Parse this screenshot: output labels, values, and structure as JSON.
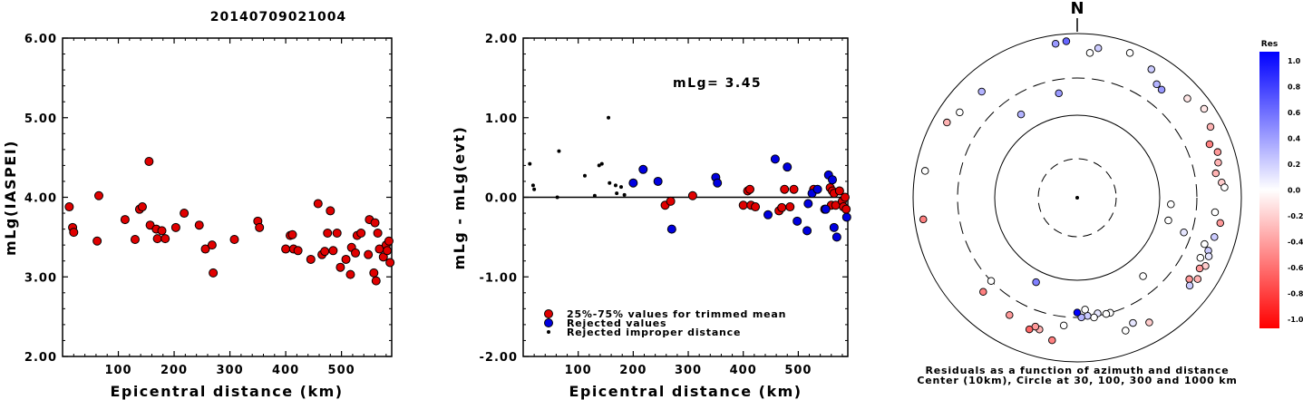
{
  "title": "20140709021004",
  "chart_data": [
    {
      "type": "scatter",
      "ylabel": "mLg(IASPEI)",
      "xlabel": "Epicentral distance (km)",
      "xlim": [
        0,
        590
      ],
      "ylim": [
        2.0,
        6.0
      ],
      "xticks": [
        "100",
        "200",
        "300",
        "400",
        "500"
      ],
      "yticks": [
        "2.00",
        "3.00",
        "4.00",
        "5.00",
        "6.00"
      ],
      "series": [
        {
          "marker": "red-circle",
          "points": [
            [
              12,
              3.88
            ],
            [
              18,
              3.62
            ],
            [
              20,
              3.56
            ],
            [
              62,
              3.45
            ],
            [
              65,
              4.02
            ],
            [
              112,
              3.72
            ],
            [
              130,
              3.47
            ],
            [
              138,
              3.85
            ],
            [
              143,
              3.88
            ],
            [
              155,
              4.45
            ],
            [
              157,
              3.65
            ],
            [
              168,
              3.6
            ],
            [
              170,
              3.48
            ],
            [
              178,
              3.58
            ],
            [
              184,
              3.48
            ],
            [
              203,
              3.62
            ],
            [
              218,
              3.8
            ],
            [
              245,
              3.65
            ],
            [
              256,
              3.35
            ],
            [
              268,
              3.4
            ],
            [
              270,
              3.05
            ],
            [
              308,
              3.47
            ],
            [
              350,
              3.7
            ],
            [
              353,
              3.62
            ],
            [
              400,
              3.35
            ],
            [
              408,
              3.52
            ],
            [
              412,
              3.53
            ],
            [
              414,
              3.35
            ],
            [
              422,
              3.33
            ],
            [
              445,
              3.22
            ],
            [
              458,
              3.92
            ],
            [
              465,
              3.28
            ],
            [
              470,
              3.32
            ],
            [
              475,
              3.55
            ],
            [
              480,
              3.83
            ],
            [
              485,
              3.33
            ],
            [
              492,
              3.55
            ],
            [
              498,
              3.12
            ],
            [
              508,
              3.22
            ],
            [
              516,
              3.03
            ],
            [
              518,
              3.37
            ],
            [
              525,
              3.3
            ],
            [
              528,
              3.52
            ],
            [
              535,
              3.55
            ],
            [
              548,
              3.28
            ],
            [
              550,
              3.72
            ],
            [
              558,
              3.05
            ],
            [
              560,
              3.68
            ],
            [
              562,
              2.95
            ],
            [
              565,
              3.55
            ],
            [
              568,
              3.35
            ],
            [
              575,
              3.25
            ],
            [
              580,
              3.4
            ],
            [
              582,
              3.33
            ],
            [
              585,
              3.45
            ],
            [
              587,
              3.18
            ]
          ]
        }
      ]
    },
    {
      "type": "scatter",
      "ylabel": "mLg - mLg(evt)",
      "xlabel": "Epicentral distance (km)",
      "xlim": [
        0,
        590
      ],
      "ylim": [
        -2.0,
        2.0
      ],
      "xticks": [
        "100",
        "200",
        "300",
        "400",
        "500"
      ],
      "yticks": [
        "-2.00",
        "-1.00",
        "0.00",
        "1.00",
        "2.00"
      ],
      "annotation": "mLg= 3.45",
      "legend": [
        {
          "marker": "red-circle",
          "label": "25%-75% values for trimmed mean"
        },
        {
          "marker": "blue-circle",
          "label": "Rejected values"
        },
        {
          "marker": "black-dot",
          "label": "Rejected improper distance"
        }
      ],
      "series": [
        {
          "marker": "red-circle",
          "points": [
            [
              258,
              -0.1
            ],
            [
              268,
              -0.05
            ],
            [
              308,
              0.02
            ],
            [
              400,
              -0.1
            ],
            [
              408,
              0.08
            ],
            [
              412,
              0.1
            ],
            [
              414,
              -0.1
            ],
            [
              422,
              -0.12
            ],
            [
              465,
              -0.17
            ],
            [
              470,
              -0.13
            ],
            [
              475,
              0.1
            ],
            [
              485,
              -0.12
            ],
            [
              492,
              0.1
            ],
            [
              528,
              0.1
            ],
            [
              548,
              -0.15
            ],
            [
              558,
              0.12
            ],
            [
              560,
              -0.1
            ],
            [
              562,
              0.08
            ],
            [
              565,
              0.05
            ],
            [
              568,
              -0.1
            ],
            [
              575,
              0.08
            ],
            [
              580,
              -0.05
            ],
            [
              582,
              -0.12
            ],
            [
              585,
              0.0
            ],
            [
              587,
              -0.15
            ]
          ]
        },
        {
          "marker": "blue-circle",
          "points": [
            [
              200,
              0.18
            ],
            [
              218,
              0.35
            ],
            [
              245,
              0.2
            ],
            [
              270,
              -0.4
            ],
            [
              350,
              0.25
            ],
            [
              353,
              0.18
            ],
            [
              445,
              -0.22
            ],
            [
              458,
              0.48
            ],
            [
              480,
              0.38
            ],
            [
              498,
              -0.3
            ],
            [
              516,
              -0.42
            ],
            [
              518,
              -0.08
            ],
            [
              525,
              0.05
            ],
            [
              535,
              0.1
            ],
            [
              550,
              -0.15
            ],
            [
              555,
              0.28
            ],
            [
              562,
              0.22
            ],
            [
              565,
              -0.38
            ],
            [
              570,
              -0.5
            ],
            [
              588,
              -0.25
            ]
          ]
        },
        {
          "marker": "black-dot",
          "points": [
            [
              12,
              0.42
            ],
            [
              18,
              0.15
            ],
            [
              20,
              0.1
            ],
            [
              62,
              0.0
            ],
            [
              65,
              0.58
            ],
            [
              112,
              0.27
            ],
            [
              130,
              0.02
            ],
            [
              138,
              0.4
            ],
            [
              143,
              0.42
            ],
            [
              155,
              1.0
            ],
            [
              157,
              0.18
            ],
            [
              168,
              0.15
            ],
            [
              170,
              0.05
            ],
            [
              178,
              0.13
            ],
            [
              184,
              0.03
            ]
          ]
        }
      ]
    },
    {
      "type": "polar-scatter",
      "north_label": "N",
      "caption_line1": "Residuals as a function of azimuth and distance",
      "caption_line2": "Center (10km), Circle at 30, 100, 300 and 1000 km",
      "colorbar_title": "Res",
      "colorbar_ticks": [
        "1.0",
        "0.8",
        "0.6",
        "0.4",
        "0.2",
        "0.0",
        "-0.2",
        "-0.4",
        "-0.6",
        "-0.8",
        "-1.0"
      ],
      "points": [
        {
          "az": 5,
          "dist": 600,
          "res": 0.0
        },
        {
          "az": 8,
          "dist": 700,
          "res": 0.2
        },
        {
          "az": 20,
          "dist": 760,
          "res": 0.0
        },
        {
          "az": 30,
          "dist": 650,
          "res": 0.2
        },
        {
          "az": 35,
          "dist": 500,
          "res": 0.3
        },
        {
          "az": 38,
          "dist": 480,
          "res": 0.4
        },
        {
          "az": 48,
          "dist": 650,
          "res": -0.1
        },
        {
          "az": 55,
          "dist": 780,
          "res": -0.1
        },
        {
          "az": 62,
          "dist": 700,
          "res": -0.3
        },
        {
          "az": 68,
          "dist": 560,
          "res": -0.5
        },
        {
          "az": 72,
          "dist": 640,
          "res": -0.4
        },
        {
          "az": 76,
          "dist": 600,
          "res": -0.3
        },
        {
          "az": 80,
          "dist": 530,
          "res": -0.3
        },
        {
          "az": 84,
          "dist": 600,
          "res": -0.2
        },
        {
          "az": 86,
          "dist": 640,
          "res": 0.0
        },
        {
          "az": 94,
          "dist": 140,
          "res": 0.0
        },
        {
          "az": 96,
          "dist": 500,
          "res": 0.0
        },
        {
          "az": 100,
          "dist": 600,
          "res": -0.4
        },
        {
          "az": 104,
          "dist": 140,
          "res": 0.0
        },
        {
          "az": 106,
          "dist": 560,
          "res": 0.2
        },
        {
          "az": 108,
          "dist": 240,
          "res": 0.1
        },
        {
          "az": 110,
          "dist": 460,
          "res": 0.0
        },
        {
          "az": 112,
          "dist": 540,
          "res": 0.2
        },
        {
          "az": 114,
          "dist": 580,
          "res": 0.1
        },
        {
          "az": 116,
          "dist": 480,
          "res": 0.0
        },
        {
          "az": 118,
          "dist": 600,
          "res": -0.2
        },
        {
          "az": 120,
          "dist": 540,
          "res": -0.4
        },
        {
          "az": 124,
          "dist": 600,
          "res": -0.3
        },
        {
          "az": 126,
          "dist": 500,
          "res": -0.4
        },
        {
          "az": 128,
          "dist": 560,
          "res": 0.2
        },
        {
          "az": 140,
          "dist": 180,
          "res": 0.0
        },
        {
          "az": 150,
          "dist": 580,
          "res": -0.2
        },
        {
          "az": 156,
          "dist": 480,
          "res": 0.1
        },
        {
          "az": 160,
          "dist": 540,
          "res": 0.0
        },
        {
          "az": 164,
          "dist": 300,
          "res": 0.0
        },
        {
          "az": 166,
          "dist": 300,
          "res": 0.0
        },
        {
          "az": 170,
          "dist": 280,
          "res": 0.1
        },
        {
          "az": 172,
          "dist": 310,
          "res": 0.0
        },
        {
          "az": 175,
          "dist": 290,
          "res": 0.2
        },
        {
          "az": 176,
          "dist": 240,
          "res": 0.0
        },
        {
          "az": 178,
          "dist": 300,
          "res": 0.3
        },
        {
          "az": 180,
          "dist": 260,
          "res": 1.0
        },
        {
          "az": 186,
          "dist": 380,
          "res": 0.0
        },
        {
          "az": 190,
          "dist": 590,
          "res": -0.5
        },
        {
          "az": 196,
          "dist": 480,
          "res": -0.3
        },
        {
          "az": 198,
          "dist": 460,
          "res": -0.4
        },
        {
          "az": 200,
          "dist": 520,
          "res": -0.6
        },
        {
          "az": 206,
          "dist": 140,
          "res": 0.5
        },
        {
          "az": 210,
          "dist": 460,
          "res": -0.4
        },
        {
          "az": 225,
          "dist": 430,
          "res": -0.5
        },
        {
          "az": 226,
          "dist": 300,
          "res": 0.0
        },
        {
          "az": 262,
          "dist": 790,
          "res": -0.5
        },
        {
          "az": 280,
          "dist": 770,
          "res": 0.0
        },
        {
          "az": 300,
          "dist": 690,
          "res": -0.3
        },
        {
          "az": 306,
          "dist": 600,
          "res": 0.0
        },
        {
          "az": 318,
          "dist": 560,
          "res": 0.3
        },
        {
          "az": 326,
          "dist": 170,
          "res": 0.3
        },
        {
          "az": 350,
          "dist": 200,
          "res": 0.4
        },
        {
          "az": 352,
          "dist": 790,
          "res": 0.4
        },
        {
          "az": 356,
          "dist": 820,
          "res": 0.6
        }
      ]
    }
  ]
}
